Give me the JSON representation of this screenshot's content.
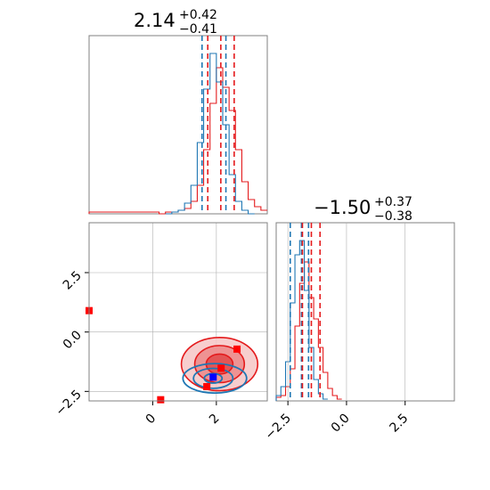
{
  "chart_data": {
    "type": "corner",
    "colors": {
      "red": "#e41a1c",
      "blue": "#1f77b4",
      "marker_blue": "#0000ff",
      "marker_red": "#ff0000",
      "grid": "#b0b0b0"
    },
    "param1": {
      "title_value": "2.14",
      "title_plus": "+0.42",
      "title_minus": "−0.41",
      "xlim": [
        -2.0,
        3.6
      ],
      "ticks": [
        0,
        2
      ],
      "tick_labels": [
        "0",
        "2"
      ],
      "blue_quantiles": [
        1.55,
        2.3
      ],
      "red_quantiles": [
        1.73,
        2.14,
        2.56
      ],
      "hist_red": [
        {
          "x": -2.0,
          "h": 0.01
        },
        {
          "x": 0.2,
          "h": 0.0
        },
        {
          "x": 0.4,
          "h": 0.01
        },
        {
          "x": 0.6,
          "h": 0.01
        },
        {
          "x": 0.8,
          "h": 0.02
        },
        {
          "x": 1.0,
          "h": 0.03
        },
        {
          "x": 1.2,
          "h": 0.07
        },
        {
          "x": 1.4,
          "h": 0.16
        },
        {
          "x": 1.6,
          "h": 0.36
        },
        {
          "x": 1.8,
          "h": 0.62
        },
        {
          "x": 2.0,
          "h": 0.82
        },
        {
          "x": 2.2,
          "h": 0.71
        },
        {
          "x": 2.4,
          "h": 0.58
        },
        {
          "x": 2.6,
          "h": 0.36
        },
        {
          "x": 2.8,
          "h": 0.18
        },
        {
          "x": 3.0,
          "h": 0.08
        },
        {
          "x": 3.2,
          "h": 0.04
        },
        {
          "x": 3.4,
          "h": 0.02
        }
      ],
      "hist_blue": [
        {
          "x": 0.4,
          "h": 0.0
        },
        {
          "x": 0.6,
          "h": 0.01
        },
        {
          "x": 0.8,
          "h": 0.02
        },
        {
          "x": 1.0,
          "h": 0.06
        },
        {
          "x": 1.2,
          "h": 0.16
        },
        {
          "x": 1.4,
          "h": 0.4
        },
        {
          "x": 1.6,
          "h": 0.7
        },
        {
          "x": 1.8,
          "h": 0.9
        },
        {
          "x": 2.0,
          "h": 0.74
        },
        {
          "x": 2.2,
          "h": 0.5
        },
        {
          "x": 2.4,
          "h": 0.22
        },
        {
          "x": 2.6,
          "h": 0.07
        },
        {
          "x": 2.8,
          "h": 0.02
        },
        {
          "x": 3.0,
          "h": 0.0
        }
      ]
    },
    "param2": {
      "title_value": "−1.50",
      "title_plus": "+0.37",
      "title_minus": "−0.38",
      "xlim": [
        -3.0,
        4.6
      ],
      "ticks": [
        -2.5,
        0.0,
        2.5
      ],
      "tick_labels": [
        "−2.5",
        "0.0",
        "2.5"
      ],
      "blue_quantiles": [
        -2.4,
        -1.92,
        -1.62
      ],
      "red_quantiles": [
        -1.88,
        -1.5,
        -1.13
      ],
      "hist_red": [
        {
          "x": -3.0,
          "h": 0.02
        },
        {
          "x": -2.8,
          "h": 0.03
        },
        {
          "x": -2.6,
          "h": 0.08
        },
        {
          "x": -2.4,
          "h": 0.18
        },
        {
          "x": -2.2,
          "h": 0.42
        },
        {
          "x": -2.0,
          "h": 0.66
        },
        {
          "x": -1.8,
          "h": 0.78
        },
        {
          "x": -1.6,
          "h": 0.58
        },
        {
          "x": -1.4,
          "h": 0.46
        },
        {
          "x": -1.2,
          "h": 0.3
        },
        {
          "x": -1.0,
          "h": 0.16
        },
        {
          "x": -0.8,
          "h": 0.07
        },
        {
          "x": -0.6,
          "h": 0.03
        },
        {
          "x": -0.4,
          "h": 0.01
        }
      ],
      "hist_blue": [
        {
          "x": -3.0,
          "h": 0.03
        },
        {
          "x": -2.8,
          "h": 0.08
        },
        {
          "x": -2.6,
          "h": 0.22
        },
        {
          "x": -2.4,
          "h": 0.55
        },
        {
          "x": -2.2,
          "h": 0.82
        },
        {
          "x": -2.0,
          "h": 0.9
        },
        {
          "x": -1.8,
          "h": 0.62
        },
        {
          "x": -1.6,
          "h": 0.3
        },
        {
          "x": -1.4,
          "h": 0.12
        },
        {
          "x": -1.2,
          "h": 0.04
        },
        {
          "x": -1.0,
          "h": 0.01
        }
      ]
    },
    "joint": {
      "xlim": [
        -2.0,
        3.6
      ],
      "ylim": [
        -2.9,
        4.6
      ],
      "xticks": [
        0,
        2
      ],
      "xtick_labels": [
        "0",
        "2"
      ],
      "yticks": [
        -2.5,
        0.0,
        2.5
      ],
      "ytick_labels": [
        "−2.5",
        "0.0",
        "2.5"
      ],
      "red_contours": [
        {
          "cx": 2.1,
          "cy": -1.35,
          "rx": 0.42,
          "ry": 0.42
        },
        {
          "cx": 2.1,
          "cy": -1.35,
          "rx": 0.78,
          "ry": 0.78
        },
        {
          "cx": 2.1,
          "cy": -1.35,
          "rx": 1.2,
          "ry": 1.12
        }
      ],
      "blue_contours": [
        {
          "cx": 1.9,
          "cy": -1.95,
          "rx": 0.28,
          "ry": 0.2
        },
        {
          "cx": 1.9,
          "cy": -1.95,
          "rx": 0.62,
          "ry": 0.42
        },
        {
          "cx": 1.95,
          "cy": -1.95,
          "rx": 1.0,
          "ry": 0.62
        }
      ],
      "red_markers": [
        {
          "x": 2.65,
          "y": -0.72
        },
        {
          "x": 2.15,
          "y": -1.52
        },
        {
          "x": 1.7,
          "y": -2.3
        },
        {
          "x": -2.0,
          "y": 0.9
        },
        {
          "x": 0.25,
          "y": -2.85
        }
      ],
      "blue_markers": [
        {
          "x": 1.9,
          "y": -1.9
        }
      ]
    }
  }
}
